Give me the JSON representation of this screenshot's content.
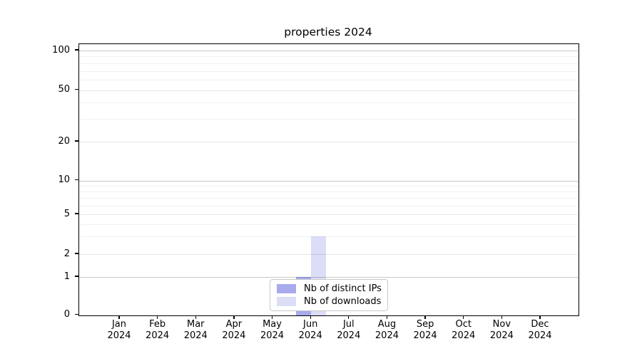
{
  "chart_data": {
    "type": "bar",
    "title": "properties 2024",
    "categories": [
      "Jan 2024",
      "Feb 2024",
      "Mar 2024",
      "Apr 2024",
      "May 2024",
      "Jun 2024",
      "Jul 2024",
      "Aug 2024",
      "Sep 2024",
      "Oct 2024",
      "Nov 2024",
      "Dec 2024"
    ],
    "series": [
      {
        "name": "Nb of distinct IPs",
        "color": "#a8aaec",
        "values": [
          0,
          0,
          0,
          0,
          0,
          1,
          0,
          0,
          0,
          0,
          0,
          0
        ]
      },
      {
        "name": "Nb of downloads",
        "color": "#dcddf6",
        "values": [
          0,
          0,
          0,
          0,
          0,
          3,
          0,
          0,
          0,
          0,
          0,
          0
        ]
      }
    ],
    "xlabel": "",
    "ylabel": "",
    "yscale": "symlog",
    "ylim": [
      0,
      112
    ],
    "yticks": [
      0,
      1,
      2,
      5,
      10,
      20,
      50,
      100
    ],
    "minor_gridlines": [
      3,
      4,
      6,
      7,
      8,
      9,
      30,
      40,
      60,
      70,
      80,
      90
    ],
    "grid": "horizontal",
    "legend_position": "lower center",
    "colors": {
      "axis": "#000000",
      "grid_major": "#c6c6c6",
      "grid_mid": "#e4e4e4",
      "grid_minor": "#efefef",
      "legend_border": "#c9c9c9",
      "background": "#ffffff"
    }
  }
}
